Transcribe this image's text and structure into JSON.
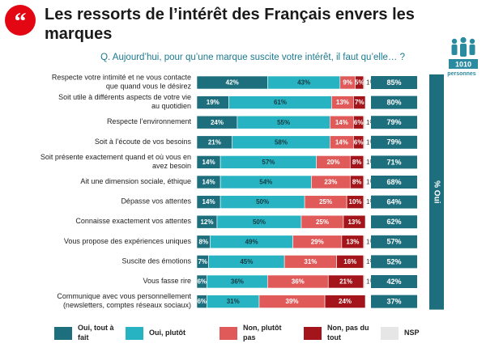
{
  "header": {
    "title": "Les ressorts de l’intérêt des Français envers les marques",
    "question": "Q. Aujourd’hui, pour qu’une marque suscite votre intérêt, il faut qu’elle… ?",
    "quote_icon": "quote-mark-icon",
    "logo_number": "1010",
    "logo_label": "personnes"
  },
  "colors": {
    "oui_tout_a_fait": "#1d6f7e",
    "oui_plutot": "#27b3c2",
    "non_plutot_pas": "#e05a5a",
    "non_pas_du_tout": "#a4151b",
    "nsp": "#e6e6e6",
    "oui_total": "#1d6f7e",
    "accent": "#e30613"
  },
  "chart_data": {
    "type": "bar",
    "orientation": "horizontal",
    "stacked": true,
    "xlim": [
      0,
      100
    ],
    "categories": [
      "Respecte votre intimité et ne vous contacte que quand vous le désirez",
      "Soit utile à différents aspects de votre vie au quotidien",
      "Respecte l’environnement",
      "Soit à l’écoute de vos besoins",
      "Soit présente exactement quand et où vous en avez besoin",
      "Ait une dimension sociale, éthique",
      "Dépasse vos attentes",
      "Connaisse exactement vos attentes",
      "Vous propose des expériences uniques",
      "Suscite des émotions",
      "Vous fasse rire",
      "Communique avec vous personnellement (newsletters, comptes réseaux sociaux)"
    ],
    "series": [
      {
        "name": "Oui, tout à fait",
        "values": [
          42,
          19,
          24,
          21,
          14,
          14,
          14,
          12,
          8,
          7,
          6,
          6
        ],
        "labels": [
          "42%",
          "19%",
          "24%",
          "21%",
          "14%",
          "14%",
          "14%",
          "12%",
          "8%",
          "7%",
          "6%",
          "6%"
        ]
      },
      {
        "name": "Oui, plutôt",
        "values": [
          43,
          61,
          55,
          58,
          57,
          54,
          50,
          50,
          49,
          45,
          36,
          31
        ],
        "labels": [
          "43%",
          "61%",
          "55%",
          "58%",
          "57%",
          "54%",
          "50%",
          "50%",
          "49%",
          "45%",
          "36%",
          "31%"
        ]
      },
      {
        "name": "Non, plutôt pas",
        "values": [
          9,
          13,
          14,
          14,
          20,
          23,
          25,
          25,
          29,
          31,
          36,
          39
        ],
        "labels": [
          "9%",
          "13%",
          "14%",
          "14%",
          "20%",
          "23%",
          "25%",
          "25%",
          "29%",
          "31%",
          "36%",
          "39%"
        ]
      },
      {
        "name": "Non, pas du tout",
        "values": [
          5,
          7,
          6,
          6,
          8,
          8,
          10,
          13,
          13,
          16,
          21,
          24
        ],
        "labels": [
          "5%",
          "7%",
          "6%",
          "6%",
          "8%",
          "8%",
          "10%",
          "13%",
          "13%",
          "16%",
          "21%",
          "24%"
        ]
      },
      {
        "name": "NSP",
        "values": [
          1,
          0,
          1,
          1,
          1,
          1,
          1,
          0,
          1,
          1,
          1,
          0
        ],
        "labels": [
          "1%",
          "",
          "1%",
          "1%",
          "1%",
          "1%",
          "1%",
          "",
          "1%",
          "1%",
          "1%",
          ""
        ]
      }
    ],
    "oui_total": {
      "header": "% Oui",
      "values": [
        85,
        80,
        79,
        79,
        71,
        68,
        64,
        62,
        57,
        52,
        42,
        37
      ],
      "labels": [
        "85%",
        "80%",
        "79%",
        "79%",
        "71%",
        "68%",
        "64%",
        "62%",
        "57%",
        "52%",
        "42%",
        "37%"
      ]
    },
    "legend": {
      "placement": "bottom",
      "items": [
        "Oui, tout à fait",
        "Oui, plutôt",
        "Non, plutôt pas",
        "Non, pas du tout",
        "NSP"
      ]
    }
  }
}
